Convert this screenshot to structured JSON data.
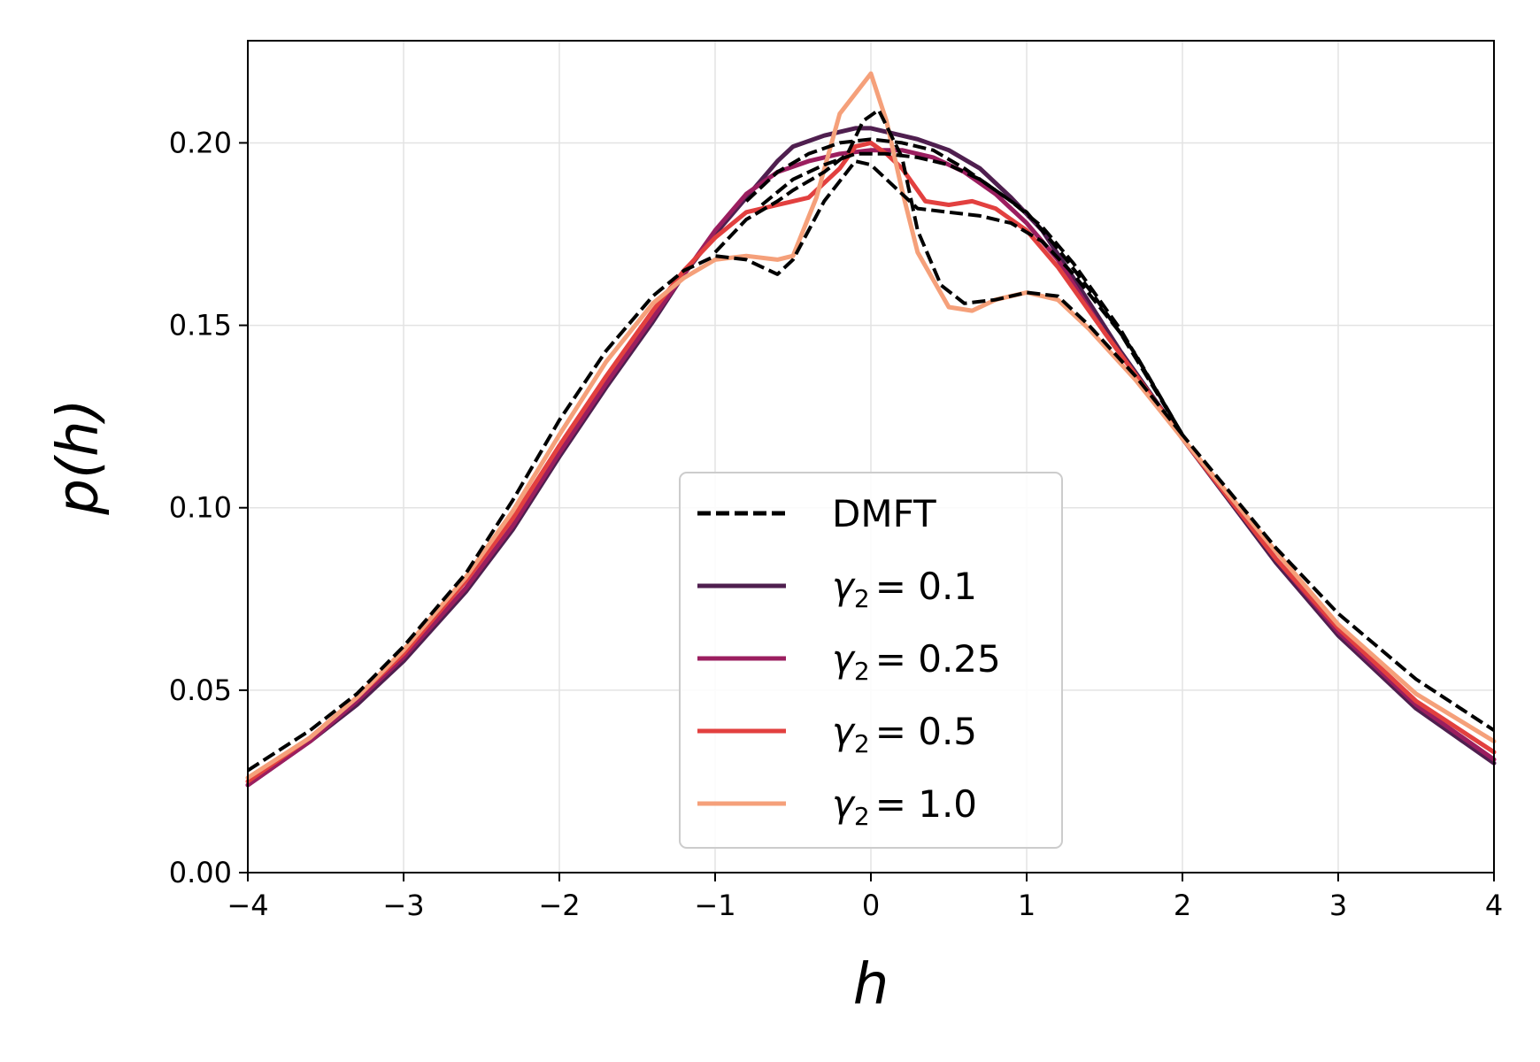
{
  "chart_data": {
    "type": "line",
    "title": "",
    "xlabel": "h",
    "ylabel": "p(h)",
    "xlim": [
      -4,
      4
    ],
    "ylim": [
      0,
      0.228
    ],
    "grid": true,
    "legend_position": "lower-center",
    "x_ticks": [
      -4,
      -3,
      -2,
      -1,
      0,
      1,
      2,
      3,
      4
    ],
    "x_tick_labels": [
      "−4",
      "−3",
      "−2",
      "−1",
      "0",
      "1",
      "2",
      "3",
      "4"
    ],
    "y_ticks": [
      0.0,
      0.05,
      0.1,
      0.15,
      0.2
    ],
    "y_tick_labels": [
      "0.00",
      "0.05",
      "0.10",
      "0.15",
      "0.20"
    ],
    "legend": [
      {
        "label": "DMFT",
        "symbol": "",
        "sub": "",
        "eq": "",
        "color": "#000000",
        "dashed": true
      },
      {
        "label": "",
        "symbol": "γ",
        "sub": "2",
        "eq": "= 0.1",
        "color": "#4f1f4f",
        "dashed": false
      },
      {
        "label": "",
        "symbol": "γ",
        "sub": "2",
        "eq": "= 0.25",
        "color": "#9b1e5f",
        "dashed": false
      },
      {
        "label": "",
        "symbol": "γ",
        "sub": "2",
        "eq": "= 0.5",
        "color": "#e2403f",
        "dashed": false
      },
      {
        "label": "",
        "symbol": "γ",
        "sub": "2",
        "eq": "= 1.0",
        "color": "#f5a07a",
        "dashed": false
      }
    ],
    "series": [
      {
        "name": "γ₂ = 0.1",
        "color": "#4f1f4f",
        "dashed": false,
        "x": [
          -4,
          -3.6,
          -3.3,
          -3,
          -2.6,
          -2.3,
          -2,
          -1.7,
          -1.4,
          -1.2,
          -1.0,
          -0.8,
          -0.6,
          -0.5,
          -0.3,
          -0.1,
          0,
          0.1,
          0.3,
          0.5,
          0.7,
          0.9,
          1.1,
          1.3,
          1.6,
          2,
          2.6,
          3,
          3.5,
          4
        ],
        "y": [
          0.024,
          0.036,
          0.046,
          0.058,
          0.077,
          0.094,
          0.114,
          0.133,
          0.151,
          0.164,
          0.175,
          0.185,
          0.195,
          0.199,
          0.202,
          0.204,
          0.204,
          0.203,
          0.201,
          0.198,
          0.193,
          0.185,
          0.176,
          0.163,
          0.143,
          0.119,
          0.085,
          0.065,
          0.045,
          0.03
        ]
      },
      {
        "name": "γ₂ = 0.25",
        "color": "#9b1e5f",
        "dashed": false,
        "x": [
          -4,
          -3.6,
          -3.3,
          -3,
          -2.6,
          -2.3,
          -2,
          -1.7,
          -1.4,
          -1.2,
          -1.0,
          -0.8,
          -0.6,
          -0.4,
          -0.2,
          0,
          0.2,
          0.4,
          0.6,
          0.8,
          1.0,
          1.2,
          1.5,
          2,
          2.6,
          3,
          3.5,
          4
        ],
        "y": [
          0.024,
          0.036,
          0.047,
          0.059,
          0.078,
          0.095,
          0.115,
          0.134,
          0.152,
          0.164,
          0.176,
          0.186,
          0.192,
          0.195,
          0.197,
          0.198,
          0.198,
          0.196,
          0.192,
          0.186,
          0.178,
          0.168,
          0.148,
          0.119,
          0.086,
          0.066,
          0.046,
          0.031
        ]
      },
      {
        "name": "γ₂ = 0.5",
        "color": "#e2403f",
        "dashed": false,
        "x": [
          -4,
          -3.6,
          -3.3,
          -3,
          -2.6,
          -2.3,
          -2,
          -1.7,
          -1.4,
          -1.2,
          -1.0,
          -0.8,
          -0.6,
          -0.4,
          -0.2,
          -0.1,
          0,
          0.1,
          0.2,
          0.35,
          0.5,
          0.65,
          0.8,
          1.0,
          1.2,
          1.5,
          2,
          2.6,
          3,
          3.5,
          4
        ],
        "y": [
          0.025,
          0.037,
          0.048,
          0.06,
          0.08,
          0.097,
          0.117,
          0.136,
          0.154,
          0.165,
          0.174,
          0.181,
          0.183,
          0.185,
          0.193,
          0.199,
          0.2,
          0.197,
          0.193,
          0.184,
          0.183,
          0.184,
          0.182,
          0.176,
          0.166,
          0.148,
          0.119,
          0.086,
          0.067,
          0.047,
          0.033
        ]
      },
      {
        "name": "γ₂ = 1.0",
        "color": "#f5a07a",
        "dashed": false,
        "x": [
          -4,
          -3.6,
          -3.3,
          -3,
          -2.6,
          -2.3,
          -2,
          -1.7,
          -1.4,
          -1.2,
          -1.0,
          -0.8,
          -0.6,
          -0.5,
          -0.35,
          -0.2,
          0,
          0.1,
          0.2,
          0.3,
          0.5,
          0.65,
          0.8,
          1.0,
          1.2,
          1.4,
          1.7,
          2,
          2.6,
          3,
          3.5,
          4
        ],
        "y": [
          0.026,
          0.037,
          0.048,
          0.061,
          0.081,
          0.099,
          0.12,
          0.14,
          0.156,
          0.163,
          0.168,
          0.169,
          0.168,
          0.169,
          0.185,
          0.208,
          0.219,
          0.206,
          0.187,
          0.17,
          0.155,
          0.154,
          0.157,
          0.159,
          0.157,
          0.149,
          0.135,
          0.119,
          0.088,
          0.068,
          0.049,
          0.036
        ]
      },
      {
        "name": "DMFT",
        "color": "#000000",
        "dashed": true,
        "x": [
          -4,
          -3.6,
          -3.3,
          -3,
          -2.6,
          -2.3,
          -2,
          -1.7,
          -1.4,
          -1.2,
          -1.0,
          -0.8,
          -0.6,
          -0.5,
          -0.3,
          -0.1,
          0,
          0.1,
          0.3,
          0.5,
          0.7,
          0.9,
          1.1,
          1.3,
          1.6,
          2,
          2.6,
          3,
          3.5,
          4
        ],
        "y": [
          0.028,
          0.039,
          0.049,
          0.062,
          0.082,
          0.102,
          0.124,
          0.143,
          0.158,
          0.165,
          0.169,
          0.168,
          0.164,
          0.168,
          0.184,
          0.195,
          0.194,
          0.19,
          0.182,
          0.181,
          0.18,
          0.178,
          0.173,
          0.164,
          0.148,
          0.12,
          0.089,
          0.071,
          0.053,
          0.039
        ]
      },
      {
        "name": "DMFT",
        "color": "#000000",
        "dashed": true,
        "x": [
          -1.0,
          -0.8,
          -0.6,
          -0.5,
          -0.3,
          -0.15,
          -0.05,
          0.05,
          0.2,
          0.3,
          0.45,
          0.6,
          0.8,
          1.0,
          1.2,
          1.4,
          1.7,
          2.0
        ],
        "y": [
          0.17,
          0.179,
          0.184,
          0.187,
          0.192,
          0.197,
          0.206,
          0.209,
          0.196,
          0.176,
          0.161,
          0.156,
          0.157,
          0.159,
          0.158,
          0.15,
          0.136,
          0.12
        ]
      },
      {
        "name": "DMFT",
        "color": "#000000",
        "dashed": true,
        "x": [
          -0.7,
          -0.5,
          -0.3,
          -0.1,
          0,
          0.1,
          0.3,
          0.5,
          0.7,
          0.9,
          1.1,
          1.3,
          1.6,
          2.0
        ],
        "y": [
          0.183,
          0.19,
          0.194,
          0.197,
          0.197,
          0.197,
          0.196,
          0.194,
          0.19,
          0.184,
          0.177,
          0.167,
          0.149,
          0.12
        ]
      },
      {
        "name": "DMFT",
        "color": "#000000",
        "dashed": true,
        "x": [
          -0.8,
          -0.6,
          -0.4,
          -0.2,
          0,
          0.2,
          0.4,
          0.6,
          0.8,
          1.0,
          1.2,
          1.4,
          1.7,
          2.0
        ],
        "y": [
          0.184,
          0.192,
          0.197,
          0.2,
          0.201,
          0.2,
          0.198,
          0.193,
          0.187,
          0.181,
          0.171,
          0.16,
          0.142,
          0.12
        ]
      }
    ]
  }
}
